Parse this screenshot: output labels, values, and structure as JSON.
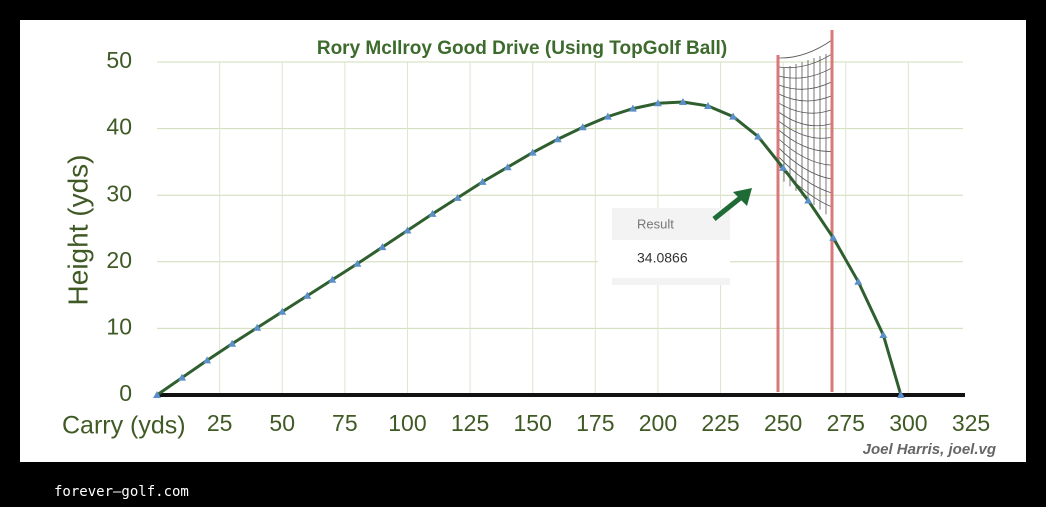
{
  "chart_data": {
    "type": "line",
    "title": "Rory McIlroy Good Drive (Using TopGolf Ball)",
    "x_label": "Carry (yds)",
    "y_label": "Height (yds)",
    "credit": "Joel Harris, joel.vg",
    "result_label": "Result",
    "result_value": "34.0866",
    "x": [
      0,
      10,
      20,
      30,
      40,
      50,
      60,
      70,
      80,
      90,
      100,
      110,
      120,
      130,
      140,
      150,
      160,
      170,
      180,
      190,
      200,
      210,
      220,
      230,
      240,
      250,
      260,
      270,
      280,
      290,
      297
    ],
    "values": [
      0,
      2.6,
      5.2,
      7.7,
      10.1,
      12.5,
      14.9,
      17.3,
      19.7,
      22.2,
      24.7,
      27.2,
      29.6,
      32,
      34.2,
      36.4,
      38.4,
      40.2,
      41.8,
      43,
      43.8,
      44,
      43.4,
      41.8,
      38.8,
      34.1,
      29.2,
      23.6,
      17,
      9,
      0
    ],
    "color": "#2f5f2f",
    "marker_color": "#5b8fc7",
    "xlim": [
      0,
      325
    ],
    "xticks": [
      25,
      50,
      75,
      100,
      125,
      150,
      175,
      200,
      225,
      250,
      275,
      300,
      325
    ],
    "ylim": [
      0,
      50
    ],
    "yticks": [
      0,
      10,
      20,
      30,
      40,
      50
    ],
    "grid": true
  },
  "footer": "forever—golf.com"
}
